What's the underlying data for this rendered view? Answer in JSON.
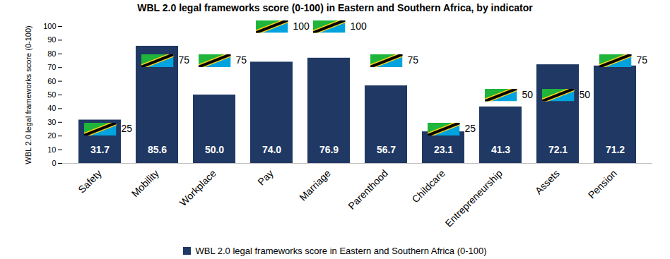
{
  "chart_data": {
    "type": "bar",
    "title": "WBL 2.0 legal frameworks score (0-100) in Eastern and Southern Africa, by indicator",
    "y_label": "WBL 2.0 legal frameworks score (0-100)",
    "categories": [
      "Safety",
      "Mobility",
      "Workplace",
      "Pay",
      "Marriage",
      "Parenthood",
      "Childcare",
      "Entrepreneurship",
      "Assets",
      "Pension"
    ],
    "series": [
      {
        "name": "WBL 2.0 legal frameworks score in Eastern and Southern Africa (0-100)",
        "type": "bar",
        "color": "#203864",
        "values": [
          31.7,
          85.6,
          50,
          74,
          76.9,
          56.7,
          23.1,
          41.3,
          72.1,
          71.2
        ],
        "value_labels": [
          "31.7",
          "85.6",
          "50.0",
          "74.0",
          "76.9",
          "56.7",
          "23.1",
          "41.3",
          "72.1",
          "71.2"
        ]
      },
      {
        "type": "scatter",
        "marker": "flag",
        "values": [
          25,
          75,
          75,
          100,
          100,
          75,
          25,
          50,
          50,
          75
        ]
      }
    ],
    "ylim": [
      0,
      100
    ],
    "yticks": [
      0,
      10,
      20,
      30,
      40,
      50,
      60,
      70,
      80,
      90,
      100
    ],
    "grid": false,
    "legend": "bottom",
    "data_labels": true
  }
}
